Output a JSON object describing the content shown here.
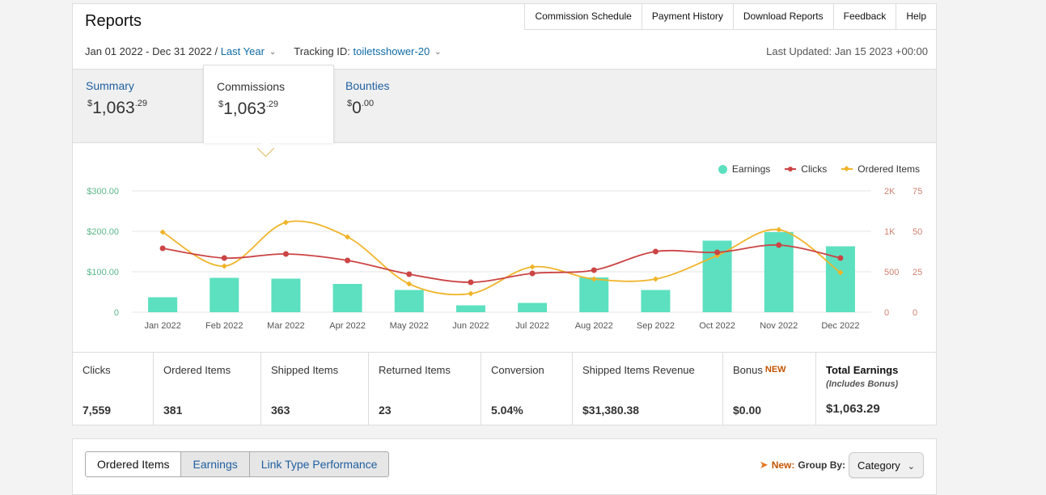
{
  "header": {
    "title": "Reports",
    "links": [
      "Commission Schedule",
      "Payment History",
      "Download Reports",
      "Feedback",
      "Help"
    ]
  },
  "filters": {
    "date_range": "Jan 01 2022 - Dec 31 2022 /",
    "period": "Last Year",
    "tracking_label": "Tracking ID:",
    "tracking_id": "toiletsshower-20",
    "last_updated": "Last Updated: Jan 15 2023 +00:00"
  },
  "summary_tabs": [
    {
      "label": "Summary",
      "currency": "$",
      "amount": "1,063",
      "cents": ".29"
    },
    {
      "label": "Commissions",
      "currency": "$",
      "amount": "1,063",
      "cents": ".29"
    },
    {
      "label": "Bounties",
      "currency": "$",
      "amount": "0",
      "cents": ".00"
    }
  ],
  "colors": {
    "earnings": "#5ce0c0",
    "clicks": "#cc4444",
    "ordered": "#f0b429",
    "link": "#1f5fa0"
  },
  "chart_data": {
    "type": "bar+line",
    "categories": [
      "Jan 2022",
      "Feb 2022",
      "Mar 2022",
      "Apr 2022",
      "May 2022",
      "Jun 2022",
      "Jul 2022",
      "Aug 2022",
      "Sep 2022",
      "Oct 2022",
      "Nov 2022",
      "Dec 2022"
    ],
    "left_axis": {
      "ticks": [
        "$300.00",
        "$200.00",
        "$100.00",
        "0"
      ],
      "range": [
        0,
        300
      ]
    },
    "right_axis_clicks": {
      "ticks": [
        "2K",
        "1K",
        "500",
        "0"
      ],
      "range": [
        0,
        1500
      ]
    },
    "right_axis_items": {
      "ticks": [
        "75",
        "50",
        "25",
        "0"
      ],
      "range": [
        0,
        75
      ]
    },
    "series": [
      {
        "name": "Earnings",
        "type": "bar",
        "axis": "left",
        "values": [
          37,
          85,
          83,
          70,
          55,
          17,
          23,
          86,
          55,
          177,
          198,
          163
        ]
      },
      {
        "name": "Clicks",
        "type": "line",
        "axis": "clicks",
        "values": [
          790,
          670,
          720,
          640,
          470,
          370,
          480,
          520,
          750,
          740,
          830,
          670
        ]
      },
      {
        "name": "Ordered Items",
        "type": "line",
        "axis": "items",
        "values": [
          49.5,
          28.5,
          55.5,
          46.5,
          17.5,
          11.5,
          28,
          20.5,
          20.5,
          35,
          51,
          24.5
        ]
      }
    ],
    "legend_position": "top-right",
    "grid": true
  },
  "metrics": [
    {
      "label": "Clicks",
      "value": "7,559"
    },
    {
      "label": "Ordered Items",
      "value": "381"
    },
    {
      "label": "Shipped Items",
      "value": "363"
    },
    {
      "label": "Returned Items",
      "value": "23"
    },
    {
      "label": "Conversion",
      "value": "5.04%"
    },
    {
      "label": "Shipped Items Revenue",
      "value": "$31,380.38"
    },
    {
      "label": "Bonus",
      "badge": "NEW",
      "value": "$0.00"
    },
    {
      "label": "Total Earnings",
      "sub": "(Includes Bonus)",
      "value": "$1,063.29"
    }
  ],
  "bottom_tabs": [
    "Ordered Items",
    "Earnings",
    "Link Type Performance"
  ],
  "group_by": {
    "new_label": "New:",
    "label": "Group By:",
    "selected": "Category"
  }
}
